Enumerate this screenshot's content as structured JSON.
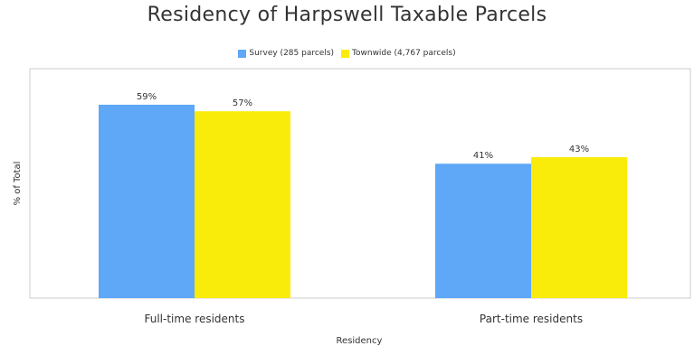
{
  "chart_data": {
    "type": "bar",
    "title": "Residency of Harpswell Taxable Parcels",
    "xlabel": "Residency",
    "ylabel": "% of Total",
    "categories": [
      "Full-time residents",
      "Part-time residents"
    ],
    "series": [
      {
        "name": "Survey (285 parcels)",
        "values": [
          59,
          41
        ],
        "labels": [
          "59%",
          "41%"
        ],
        "color": "#5ea8f7"
      },
      {
        "name": "Townwide (4,767 parcels)",
        "values": [
          57,
          43
        ],
        "labels": [
          "57%",
          "43%"
        ],
        "color": "#faec0a"
      }
    ],
    "ylim": [
      0,
      70
    ],
    "grid": false,
    "legend_position": "top-center"
  }
}
